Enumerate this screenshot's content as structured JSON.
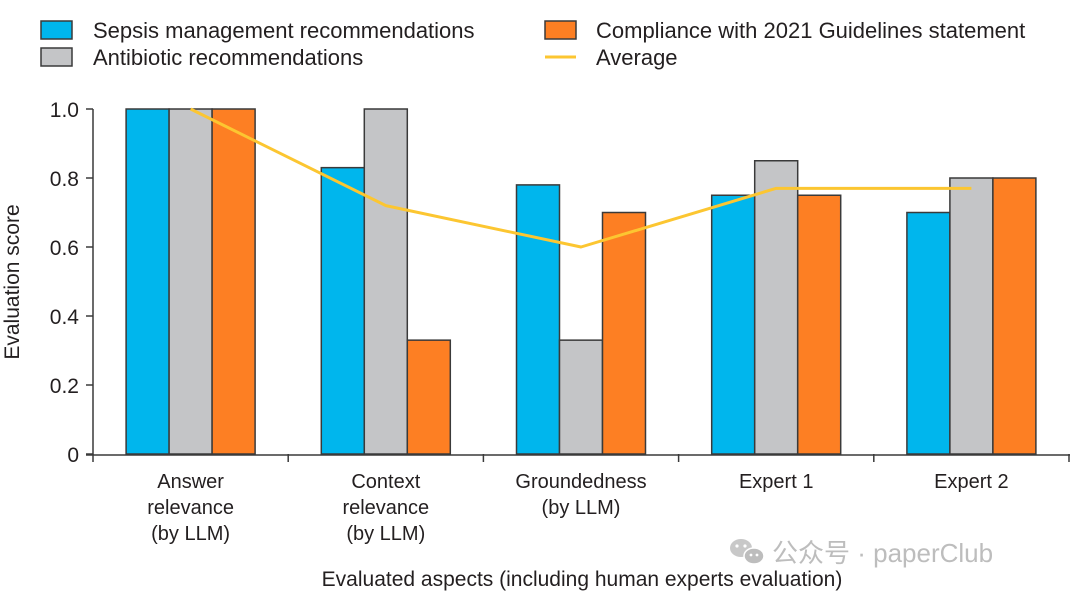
{
  "chart_data": {
    "type": "bar",
    "title": "",
    "xlabel": "Evaluated aspects (including human experts evaluation)",
    "ylabel": "Evaluation score",
    "ylim": [
      0,
      1.0
    ],
    "yticks": [
      0,
      0.2,
      0.4,
      0.6,
      0.8,
      1.0
    ],
    "ytick_labels": [
      "0",
      "0.2",
      "0.4",
      "0.6",
      "0.8",
      "1.0"
    ],
    "grid": false,
    "legend_position": "top",
    "categories": [
      [
        "Answer",
        "relevance",
        "(by LLM)"
      ],
      [
        "Context",
        "relevance",
        "(by LLM)"
      ],
      [
        "Groundedness",
        "(by LLM)"
      ],
      [
        "Expert 1"
      ],
      [
        "Expert 2"
      ]
    ],
    "series": [
      {
        "name": "Sepsis management recommendations",
        "type": "bar",
        "color": "#00b6ed",
        "values": [
          1.0,
          0.83,
          0.78,
          0.75,
          0.7
        ]
      },
      {
        "name": "Antibiotic recommendations",
        "type": "bar",
        "color": "#c4c5c7",
        "values": [
          1.0,
          1.0,
          0.33,
          0.85,
          0.8
        ]
      },
      {
        "name": "Compliance with 2021 Guidelines statement",
        "type": "bar",
        "color": "#fd7f23",
        "values": [
          1.0,
          0.33,
          0.7,
          0.75,
          0.8
        ]
      },
      {
        "name": "Average",
        "type": "line",
        "color": "#fcc631",
        "values": [
          1.0,
          0.72,
          0.6,
          0.77,
          0.77
        ]
      }
    ]
  },
  "watermark": {
    "icon": "wechat-icon",
    "text": "公众号 · paperClub"
  }
}
